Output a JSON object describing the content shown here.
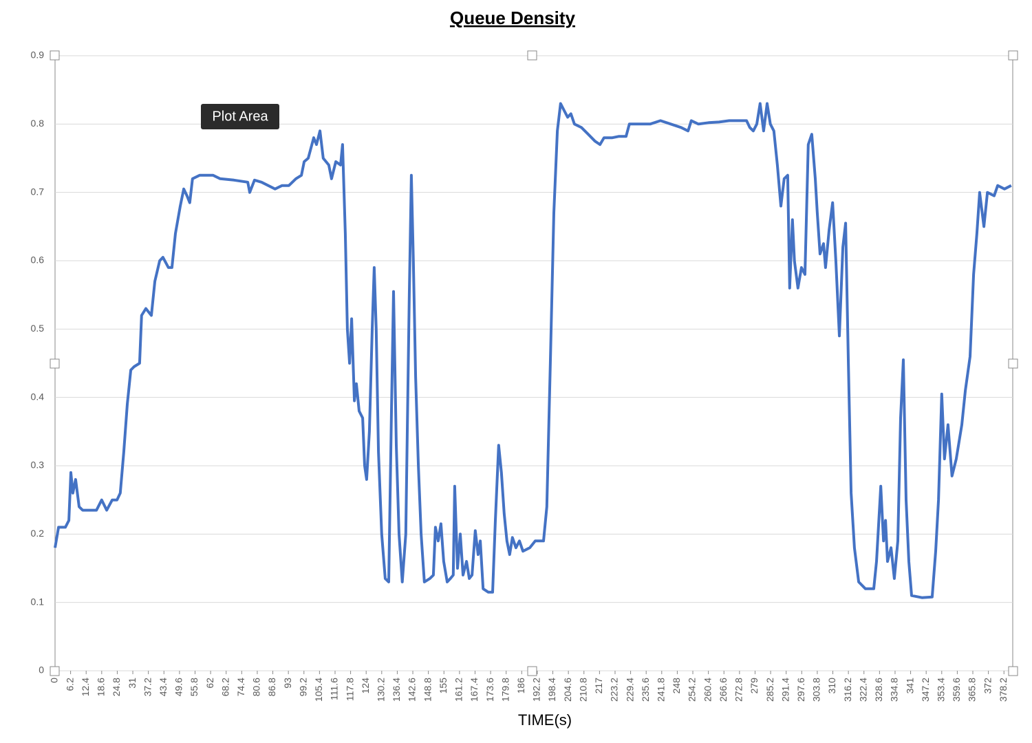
{
  "chart_data": {
    "type": "line",
    "title": "Queue Density",
    "x_label": "TIME(s)",
    "tooltip": "Plot Area",
    "color": "#4472c4",
    "grid": true,
    "xlim": [
      0,
      381.7
    ],
    "ylim": [
      0,
      0.9
    ],
    "yticks": [
      0,
      0.1,
      0.2,
      0.3,
      0.4,
      0.5,
      0.6,
      0.7,
      0.8,
      0.9
    ],
    "xticks": [
      0,
      6.2,
      12.4,
      18.6,
      24.8,
      31,
      37.2,
      43.4,
      49.6,
      55.8,
      62,
      68.2,
      74.4,
      80.6,
      86.8,
      93,
      99.2,
      105.4,
      111.6,
      117.8,
      124,
      130.2,
      136.4,
      142.6,
      148.8,
      155,
      161.2,
      167.4,
      173.6,
      179.8,
      186,
      192.2,
      198.4,
      204.6,
      210.8,
      217,
      223.2,
      229.4,
      235.6,
      241.8,
      248,
      254.2,
      260.4,
      266.6,
      272.8,
      279,
      285.2,
      291.4,
      297.6,
      303.8,
      310,
      316.2,
      322.4,
      328.6,
      334.8,
      341,
      347.2,
      353.4,
      359.6,
      365.8,
      372,
      378.2
    ],
    "x": [
      0,
      1.4,
      4.1,
      5.5,
      6.3,
      7.1,
      8.2,
      9.6,
      11,
      16.5,
      18.6,
      20.6,
      22.8,
      24.7,
      26,
      27.4,
      28.8,
      30.2,
      31.5,
      33.7,
      34.5,
      36.2,
      38.4,
      39.8,
      41.7,
      43,
      45.2,
      46.6,
      48,
      49.9,
      51.3,
      52.6,
      53.7,
      54.8,
      57.6,
      63,
      65.8,
      71.3,
      76.8,
      77.6,
      79.5,
      82.3,
      87.7,
      90.5,
      93.2,
      96,
      98.2,
      99.3,
      100.9,
      103.1,
      104.2,
      105.6,
      106.9,
      109.1,
      110.2,
      111.9,
      113.8,
      114.6,
      115.7,
      116.5,
      117.4,
      118.2,
      119.3,
      120.1,
      121.2,
      122.6,
      123.4,
      124.2,
      125.3,
      126.4,
      127.2,
      128,
      128.9,
      130.2,
      131.6,
      133,
      134.1,
      134.9,
      136,
      137.1,
      138.4,
      139.8,
      141.2,
      142,
      142.8,
      143.7,
      144.8,
      145.9,
      147.2,
      149.4,
      150.8,
      151.6,
      152.7,
      153.8,
      154.9,
      156.3,
      157.6,
      158.7,
      159.3,
      160.4,
      161.5,
      162.6,
      164,
      165.1,
      166.2,
      167.5,
      168.6,
      169.5,
      170.6,
      172.7,
      174.4,
      175.5,
      176.8,
      177.9,
      179,
      180.1,
      181.2,
      182.3,
      183.7,
      185.1,
      186.5,
      189.2,
      191.4,
      194.7,
      196,
      197.4,
      198.8,
      200.2,
      201.5,
      202.9,
      204.3,
      205.6,
      207,
      209.8,
      212.5,
      215.2,
      217.2,
      218.8,
      222.1,
      224.8,
      227.6,
      228.9,
      233.1,
      237.2,
      241.3,
      245.4,
      249.5,
      252.3,
      253.6,
      256.4,
      260.5,
      264.6,
      268.7,
      272.8,
      275.6,
      276.9,
      278.3,
      279.7,
      281,
      282.4,
      283.8,
      285.1,
      286.5,
      287.9,
      289.3,
      290.6,
      292,
      292.8,
      293.9,
      294.7,
      296.1,
      297.5,
      298.9,
      300.2,
      301.6,
      303,
      303.8,
      304.9,
      306.3,
      307.1,
      308.5,
      309.9,
      311.2,
      312.6,
      314,
      315.1,
      316.2,
      317.3,
      318.6,
      320.3,
      323,
      326.3,
      327.4,
      329.1,
      330.2,
      331,
      331.8,
      333.2,
      334.5,
      335.9,
      337,
      338.1,
      339.2,
      340.3,
      341.4,
      345.5,
      349.6,
      351,
      352.1,
      353.4,
      354.5,
      355.9,
      357.5,
      359.2,
      361.4,
      362.8,
      364.7,
      366.1,
      367.4,
      368.5,
      370.2,
      371.6,
      374.3,
      375.7,
      378.4,
      381.1
    ],
    "values": [
      0.18,
      0.21,
      0.21,
      0.22,
      0.29,
      0.26,
      0.28,
      0.24,
      0.235,
      0.235,
      0.25,
      0.235,
      0.25,
      0.25,
      0.26,
      0.32,
      0.39,
      0.44,
      0.445,
      0.45,
      0.52,
      0.53,
      0.52,
      0.57,
      0.6,
      0.605,
      0.59,
      0.59,
      0.64,
      0.68,
      0.705,
      0.695,
      0.685,
      0.72,
      0.725,
      0.725,
      0.72,
      0.718,
      0.715,
      0.7,
      0.718,
      0.715,
      0.705,
      0.71,
      0.71,
      0.72,
      0.725,
      0.745,
      0.75,
      0.78,
      0.77,
      0.79,
      0.75,
      0.74,
      0.72,
      0.745,
      0.74,
      0.77,
      0.64,
      0.5,
      0.45,
      0.515,
      0.395,
      0.42,
      0.38,
      0.37,
      0.3,
      0.28,
      0.35,
      0.5,
      0.59,
      0.5,
      0.32,
      0.2,
      0.135,
      0.13,
      0.38,
      0.555,
      0.33,
      0.2,
      0.13,
      0.2,
      0.55,
      0.725,
      0.6,
      0.43,
      0.3,
      0.2,
      0.13,
      0.135,
      0.14,
      0.21,
      0.19,
      0.215,
      0.16,
      0.13,
      0.135,
      0.14,
      0.27,
      0.15,
      0.2,
      0.14,
      0.16,
      0.135,
      0.14,
      0.205,
      0.17,
      0.19,
      0.12,
      0.115,
      0.115,
      0.22,
      0.33,
      0.29,
      0.23,
      0.19,
      0.17,
      0.195,
      0.18,
      0.19,
      0.175,
      0.18,
      0.19,
      0.19,
      0.24,
      0.45,
      0.67,
      0.79,
      0.83,
      0.82,
      0.81,
      0.815,
      0.8,
      0.795,
      0.785,
      0.775,
      0.77,
      0.78,
      0.78,
      0.782,
      0.782,
      0.8,
      0.8,
      0.8,
      0.805,
      0.8,
      0.795,
      0.79,
      0.805,
      0.8,
      0.802,
      0.803,
      0.805,
      0.805,
      0.805,
      0.795,
      0.79,
      0.8,
      0.83,
      0.79,
      0.83,
      0.8,
      0.79,
      0.74,
      0.68,
      0.72,
      0.725,
      0.56,
      0.66,
      0.6,
      0.56,
      0.59,
      0.58,
      0.77,
      0.785,
      0.72,
      0.67,
      0.61,
      0.625,
      0.59,
      0.645,
      0.685,
      0.6,
      0.49,
      0.62,
      0.655,
      0.45,
      0.26,
      0.18,
      0.13,
      0.12,
      0.12,
      0.16,
      0.27,
      0.19,
      0.22,
      0.16,
      0.18,
      0.135,
      0.19,
      0.37,
      0.455,
      0.25,
      0.16,
      0.11,
      0.107,
      0.108,
      0.175,
      0.25,
      0.405,
      0.31,
      0.36,
      0.285,
      0.31,
      0.36,
      0.41,
      0.46,
      0.58,
      0.64,
      0.7,
      0.65,
      0.7,
      0.695,
      0.71,
      0.705,
      0.71
    ]
  }
}
